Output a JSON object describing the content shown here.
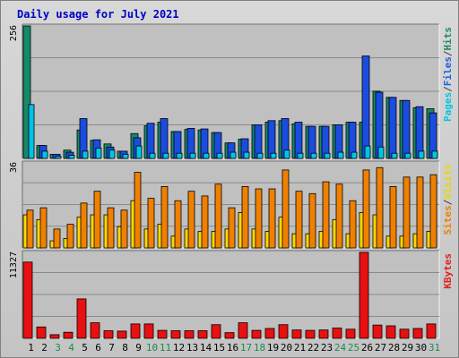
{
  "chart_data": {
    "type": "bar",
    "title": "Daily usage for July 2021",
    "categories": [
      "1",
      "2",
      "3",
      "4",
      "5",
      "6",
      "7",
      "8",
      "9",
      "10",
      "11",
      "12",
      "13",
      "14",
      "15",
      "16",
      "17",
      "18",
      "19",
      "20",
      "21",
      "22",
      "23",
      "24",
      "25",
      "26",
      "27",
      "28",
      "29",
      "30",
      "31"
    ],
    "weekend_days": [
      "3",
      "4",
      "10",
      "11",
      "17",
      "18",
      "24",
      "25",
      "31"
    ],
    "panels": [
      {
        "id": "top",
        "max_label": "256",
        "ylim": [
          0,
          256
        ],
        "axis_labels": [
          {
            "text": "Pages",
            "color": "#00c8e0"
          },
          {
            "text": "/",
            "color": "#404040"
          },
          {
            "text": "Files",
            "color": "#2060e0"
          },
          {
            "text": "/",
            "color": "#404040"
          },
          {
            "text": "Hits",
            "color": "#208870"
          }
        ],
        "series": [
          {
            "color": "#158a6a",
            "values": [
              256,
              25,
              8,
              16,
              55,
              35,
              28,
              14,
              48,
              63,
              70,
              52,
              56,
              55,
              50,
              30,
              37,
              65,
              70,
              73,
              67,
              62,
              62,
              65,
              70,
              70,
              130,
              118,
              112,
              98,
              96
            ]
          },
          {
            "color": "#1a4ce0",
            "values": [
              0,
              25,
              8,
              12,
              77,
              36,
              22,
              14,
              40,
              68,
              77,
              52,
              58,
              57,
              50,
              30,
              38,
              65,
              73,
              77,
              70,
              62,
              62,
              65,
              70,
              198,
              128,
              118,
              112,
              100,
              88
            ]
          },
          {
            "color": "#00c4e8",
            "values": [
              104,
              14,
              4,
              6,
              14,
              20,
              16,
              8,
              24,
              10,
              10,
              10,
              10,
              10,
              10,
              12,
              12,
              10,
              10,
              16,
              10,
              10,
              10,
              12,
              12,
              24,
              22,
              10,
              10,
              14,
              14
            ]
          }
        ]
      },
      {
        "id": "mid",
        "max_label": "36",
        "ylim": [
          0,
          36
        ],
        "axis_labels": [
          {
            "text": "Sites",
            "color": "#f08000"
          },
          {
            "text": "/",
            "color": "#404040"
          },
          {
            "text": "Visits",
            "color": "#e8d800"
          }
        ],
        "series": [
          {
            "color": "#ffd800",
            "values": [
              14,
              12,
              3,
              4,
              13,
              14,
              14,
              9,
              20,
              8,
              10,
              5,
              8,
              7,
              7,
              8,
              15,
              8,
              7,
              13,
              6,
              6,
              7,
              12,
              6,
              15,
              14,
              5,
              5,
              6,
              7
            ]
          },
          {
            "color": "#f08000",
            "values": [
              16,
              17,
              8,
              10,
              19,
              24,
              17,
              16,
              32,
              21,
              26,
              20,
              24,
              22,
              27,
              17,
              26,
              25,
              25,
              33,
              24,
              23,
              28,
              27,
              20,
              33,
              34,
              26,
              30,
              30,
              31
            ]
          }
        ]
      },
      {
        "id": "bot",
        "max_label": "11327",
        "ylim": [
          0,
          11327
        ],
        "axis_labels": [
          {
            "text": "KBytes",
            "color": "#e02020"
          }
        ],
        "series": [
          {
            "color": "#e81010",
            "values": [
              10050,
              1500,
              480,
              800,
              5200,
              2050,
              1000,
              950,
              1900,
              1900,
              1050,
              1000,
              1000,
              1000,
              1800,
              750,
              2050,
              1050,
              1300,
              1800,
              1100,
              1050,
              1100,
              1350,
              1200,
              11327,
              1750,
              1650,
              1200,
              1300,
              1900
            ]
          }
        ]
      }
    ]
  }
}
